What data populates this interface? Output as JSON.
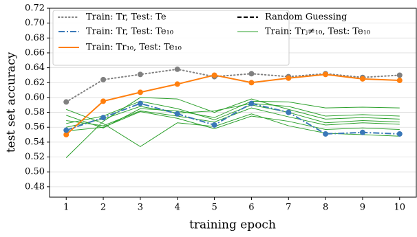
{
  "chart_data": {
    "type": "line",
    "x_label": "training epoch",
    "y_label": "test set accuracy",
    "x": [
      1,
      2,
      3,
      4,
      5,
      6,
      7,
      8,
      9,
      10
    ],
    "xlim": [
      0.55,
      10.45
    ],
    "xticks": [
      1,
      2,
      3,
      4,
      5,
      6,
      7,
      8,
      9,
      10
    ],
    "ylim": [
      0.466,
      0.72
    ],
    "yticks": [
      {
        "value": 0.48,
        "label": "0.48"
      },
      {
        "value": 0.5,
        "label": "0.50"
      },
      {
        "value": 0.52,
        "label": "0.52"
      },
      {
        "value": 0.54,
        "label": "0.54"
      },
      {
        "value": 0.56,
        "label": "0.56"
      },
      {
        "value": 0.58,
        "label": "0.58"
      },
      {
        "value": 0.6,
        "label": "0.60"
      },
      {
        "value": 0.62,
        "label": "0.62"
      },
      {
        "value": 0.64,
        "label": "0.64"
      },
      {
        "value": 0.66,
        "label": "0.66"
      },
      {
        "value": 0.68,
        "label": "0.68"
      },
      {
        "value": 0.7,
        "label": "0.70"
      },
      {
        "value": 0.72,
        "label": "0.72"
      }
    ],
    "grid": true,
    "legend": "upper left",
    "series": [
      {
        "name": "Train: Tr, Test: Te",
        "color": "#808080",
        "style": "dotted",
        "markers": true,
        "values": [
          0.594,
          0.624,
          0.631,
          0.638,
          0.628,
          0.632,
          0.628,
          0.632,
          0.627,
          0.63
        ]
      },
      {
        "name": "Train: Tr, Test: Te₁₀",
        "color": "#3a78b8",
        "style": "dashdot",
        "markers": true,
        "values": [
          0.556,
          0.573,
          0.592,
          0.578,
          0.563,
          0.592,
          0.58,
          0.551,
          0.553,
          0.551
        ]
      },
      {
        "name": "Train: Tr₁₀, Test: Te₁₀",
        "color": "#ff7f0e",
        "style": "solid",
        "markers": true,
        "values": [
          0.55,
          0.595,
          0.607,
          0.618,
          0.63,
          0.62,
          0.626,
          0.631,
          0.625,
          0.623
        ]
      },
      {
        "name": "Random Guessing",
        "color": "#000000",
        "style": "dashed",
        "markers": false,
        "values": [
          null,
          null,
          null,
          null,
          null,
          null,
          null,
          null,
          null,
          null
        ]
      },
      {
        "name": "Train: Trⱼ≠₁₀, Test: Te₁₀",
        "color": "#2ca02c",
        "style": "thin",
        "markers": false,
        "lines": [
          [
            0.519,
            0.568,
            0.6,
            0.598,
            0.58,
            0.598,
            0.584,
            0.571,
            0.573,
            0.571
          ],
          [
            0.584,
            0.565,
            0.534,
            0.566,
            0.561,
            0.578,
            0.562,
            0.552,
            0.55,
            0.548
          ],
          [
            0.576,
            0.559,
            0.585,
            0.582,
            0.573,
            0.595,
            0.594,
            0.586,
            0.587,
            0.586
          ],
          [
            0.569,
            0.562,
            0.582,
            0.575,
            0.567,
            0.586,
            0.574,
            0.563,
            0.566,
            0.564
          ],
          [
            0.56,
            0.571,
            0.588,
            0.579,
            0.582,
            0.592,
            0.588,
            0.575,
            0.577,
            0.575
          ],
          [
            0.555,
            0.56,
            0.581,
            0.572,
            0.558,
            0.575,
            0.568,
            0.557,
            0.559,
            0.557
          ],
          [
            0.565,
            0.575,
            0.595,
            0.585,
            0.57,
            0.59,
            0.58,
            0.566,
            0.569,
            0.567
          ]
        ]
      }
    ]
  }
}
